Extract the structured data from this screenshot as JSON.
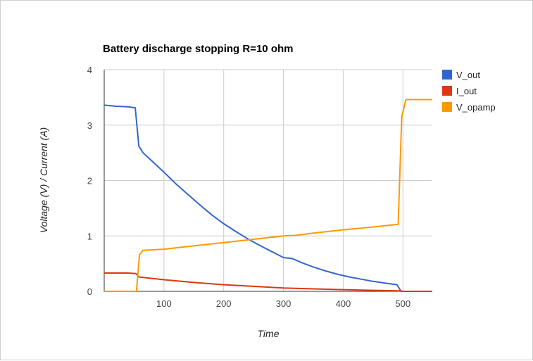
{
  "chart_data": {
    "type": "line",
    "title": "Battery discharge stopping R=10 ohm",
    "xlabel": "Time",
    "ylabel": "Voltage (V) / Current (A)",
    "xlim": [
      0,
      548
    ],
    "ylim": [
      0,
      4
    ],
    "x_ticks": [
      100,
      200,
      300,
      400,
      500
    ],
    "y_ticks": [
      0,
      1,
      2,
      3,
      4
    ],
    "grid": true,
    "legend_position": "right",
    "series": [
      {
        "name": "V_out",
        "color": "#3366cc",
        "points": [
          [
            0,
            3.36
          ],
          [
            20,
            3.34
          ],
          [
            40,
            3.33
          ],
          [
            52,
            3.31
          ],
          [
            58,
            2.62
          ],
          [
            65,
            2.5
          ],
          [
            80,
            2.35
          ],
          [
            100,
            2.15
          ],
          [
            120,
            1.94
          ],
          [
            140,
            1.75
          ],
          [
            160,
            1.56
          ],
          [
            180,
            1.38
          ],
          [
            200,
            1.22
          ],
          [
            220,
            1.08
          ],
          [
            240,
            0.95
          ],
          [
            260,
            0.83
          ],
          [
            280,
            0.72
          ],
          [
            300,
            0.61
          ],
          [
            315,
            0.59
          ],
          [
            330,
            0.52
          ],
          [
            350,
            0.44
          ],
          [
            370,
            0.37
          ],
          [
            390,
            0.31
          ],
          [
            410,
            0.26
          ],
          [
            430,
            0.22
          ],
          [
            450,
            0.18
          ],
          [
            470,
            0.15
          ],
          [
            490,
            0.12
          ],
          [
            497,
            0.0
          ],
          [
            548,
            0.0
          ]
        ]
      },
      {
        "name": "I_out",
        "color": "#dc3912",
        "points": [
          [
            0,
            0.33
          ],
          [
            20,
            0.33
          ],
          [
            40,
            0.33
          ],
          [
            53,
            0.32
          ],
          [
            58,
            0.26
          ],
          [
            65,
            0.25
          ],
          [
            100,
            0.21
          ],
          [
            150,
            0.16
          ],
          [
            200,
            0.12
          ],
          [
            250,
            0.09
          ],
          [
            300,
            0.06
          ],
          [
            350,
            0.045
          ],
          [
            400,
            0.03
          ],
          [
            450,
            0.018
          ],
          [
            495,
            0.01
          ],
          [
            500,
            0.0
          ],
          [
            548,
            0.0
          ]
        ]
      },
      {
        "name": "V_opamp",
        "color": "#ff9900",
        "points": [
          [
            0,
            0.0
          ],
          [
            54,
            0.0
          ],
          [
            59,
            0.66
          ],
          [
            65,
            0.74
          ],
          [
            100,
            0.76
          ],
          [
            150,
            0.82
          ],
          [
            200,
            0.88
          ],
          [
            250,
            0.94
          ],
          [
            300,
            1.0
          ],
          [
            320,
            1.01
          ],
          [
            350,
            1.05
          ],
          [
            400,
            1.11
          ],
          [
            450,
            1.16
          ],
          [
            492,
            1.21
          ],
          [
            498,
            3.15
          ],
          [
            505,
            3.46
          ],
          [
            548,
            3.46
          ]
        ]
      }
    ]
  }
}
